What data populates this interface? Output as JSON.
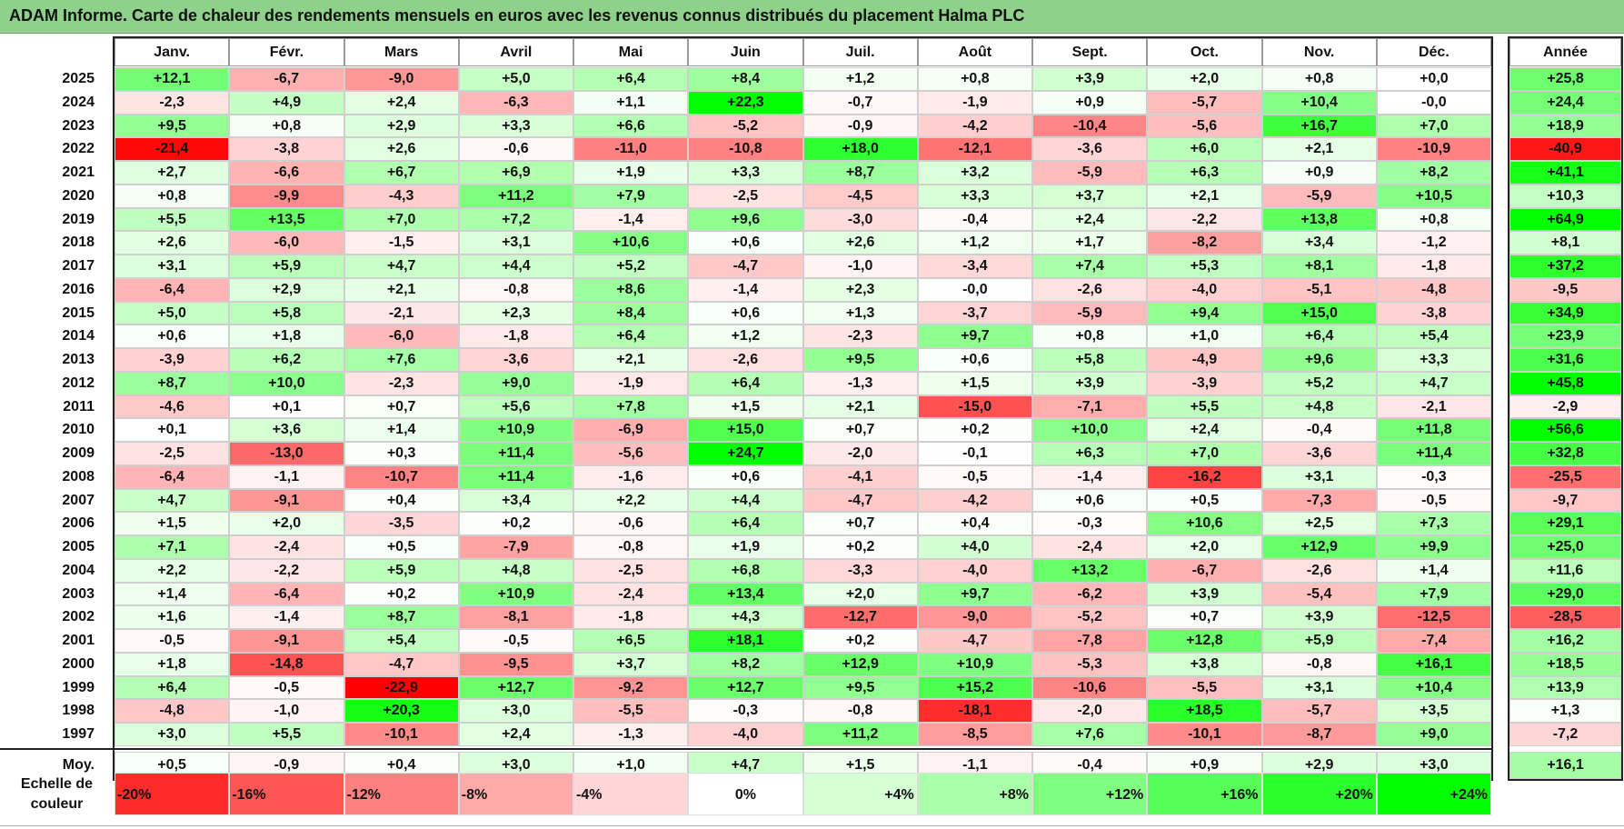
{
  "title": "ADAM Informe. Carte de chaleur des rendements mensuels en euros avec les revenus connus distribués du placement Halma PLC",
  "chart_data": {
    "type": "heatmap",
    "title": "ADAM Informe. Carte de chaleur des rendements mensuels en euros avec les revenus connus distribués du placement Halma PLC",
    "months": [
      "Janv.",
      "Févr.",
      "Mars",
      "Avril",
      "Mai",
      "Juin",
      "Juil.",
      "Août",
      "Sept.",
      "Oct.",
      "Nov.",
      "Déc."
    ],
    "year_header": "Année",
    "rows": [
      {
        "year": "2025",
        "values": [
          "+12,1",
          "-6,7",
          "-9,0",
          "+5,0",
          "+6,4",
          "+8,4",
          "+1,2",
          "+0,8",
          "+3,9",
          "+2,0",
          "+0,8",
          "+0,0"
        ],
        "annual": "+25,8"
      },
      {
        "year": "2024",
        "values": [
          "-2,3",
          "+4,9",
          "+2,4",
          "-6,3",
          "+1,1",
          "+22,3",
          "-0,7",
          "-1,9",
          "+0,9",
          "-5,7",
          "+10,4",
          "-0,0"
        ],
        "annual": "+24,4"
      },
      {
        "year": "2023",
        "values": [
          "+9,5",
          "+0,8",
          "+2,9",
          "+3,3",
          "+6,6",
          "-5,2",
          "-0,9",
          "-4,2",
          "-10,4",
          "-5,6",
          "+16,7",
          "+7,0"
        ],
        "annual": "+18,9"
      },
      {
        "year": "2022",
        "values": [
          "-21,4",
          "-3,8",
          "+2,6",
          "-0,6",
          "-11,0",
          "-10,8",
          "+18,0",
          "-12,1",
          "-3,6",
          "+6,0",
          "+2,1",
          "-10,9"
        ],
        "annual": "-40,9"
      },
      {
        "year": "2021",
        "values": [
          "+2,7",
          "-6,6",
          "+6,7",
          "+6,9",
          "+1,9",
          "+3,3",
          "+8,7",
          "+3,2",
          "-5,9",
          "+6,3",
          "+0,9",
          "+8,2"
        ],
        "annual": "+41,1"
      },
      {
        "year": "2020",
        "values": [
          "+0,8",
          "-9,9",
          "-4,3",
          "+11,2",
          "+7,9",
          "-2,5",
          "-4,5",
          "+3,3",
          "+3,7",
          "+2,1",
          "-5,9",
          "+10,5"
        ],
        "annual": "+10,3"
      },
      {
        "year": "2019",
        "values": [
          "+5,5",
          "+13,5",
          "+7,0",
          "+7,2",
          "-1,4",
          "+9,6",
          "-3,0",
          "-0,4",
          "+2,4",
          "-2,2",
          "+13,8",
          "+0,8"
        ],
        "annual": "+64,9"
      },
      {
        "year": "2018",
        "values": [
          "+2,6",
          "-6,0",
          "-1,5",
          "+3,1",
          "+10,6",
          "+0,6",
          "+2,6",
          "+1,2",
          "+1,7",
          "-8,2",
          "+3,4",
          "-1,2"
        ],
        "annual": "+8,1"
      },
      {
        "year": "2017",
        "values": [
          "+3,1",
          "+5,9",
          "+4,7",
          "+4,4",
          "+5,2",
          "-4,7",
          "-1,0",
          "-3,4",
          "+7,4",
          "+5,3",
          "+8,1",
          "-1,8"
        ],
        "annual": "+37,2"
      },
      {
        "year": "2016",
        "values": [
          "-6,4",
          "+2,9",
          "+2,1",
          "-0,8",
          "+8,6",
          "-1,4",
          "+2,3",
          "-0,0",
          "-2,6",
          "-4,0",
          "-5,1",
          "-4,8"
        ],
        "annual": "-9,5"
      },
      {
        "year": "2015",
        "values": [
          "+5,0",
          "+5,8",
          "-2,1",
          "+2,3",
          "+8,4",
          "+0,6",
          "+1,3",
          "-3,7",
          "-5,9",
          "+9,4",
          "+15,0",
          "-3,8"
        ],
        "annual": "+34,9"
      },
      {
        "year": "2014",
        "values": [
          "+0,6",
          "+1,8",
          "-6,0",
          "-1,8",
          "+6,4",
          "+1,2",
          "-2,3",
          "+9,7",
          "+0,8",
          "+1,0",
          "+6,4",
          "+5,4"
        ],
        "annual": "+23,9"
      },
      {
        "year": "2013",
        "values": [
          "-3,9",
          "+6,2",
          "+7,6",
          "-3,6",
          "+2,1",
          "-2,6",
          "+9,5",
          "+0,6",
          "+5,8",
          "-4,9",
          "+9,6",
          "+3,3"
        ],
        "annual": "+31,6"
      },
      {
        "year": "2012",
        "values": [
          "+8,7",
          "+10,0",
          "-2,3",
          "+9,0",
          "-1,9",
          "+6,4",
          "-1,3",
          "+1,5",
          "+3,9",
          "-3,9",
          "+5,2",
          "+4,7"
        ],
        "annual": "+45,8"
      },
      {
        "year": "2011",
        "values": [
          "-4,6",
          "+0,1",
          "+0,7",
          "+5,6",
          "+7,8",
          "+1,5",
          "+2,1",
          "-15,0",
          "-7,1",
          "+5,5",
          "+4,8",
          "-2,1"
        ],
        "annual": "-2,9"
      },
      {
        "year": "2010",
        "values": [
          "+0,1",
          "+3,6",
          "+1,4",
          "+10,9",
          "-6,9",
          "+15,0",
          "+0,7",
          "+0,2",
          "+10,0",
          "+2,4",
          "-0,4",
          "+11,8"
        ],
        "annual": "+56,6"
      },
      {
        "year": "2009",
        "values": [
          "-2,5",
          "-13,0",
          "+0,3",
          "+11,4",
          "-5,6",
          "+24,7",
          "-2,0",
          "-0,1",
          "+6,3",
          "+7,0",
          "-3,6",
          "+11,4"
        ],
        "annual": "+32,8"
      },
      {
        "year": "2008",
        "values": [
          "-6,4",
          "-1,1",
          "-10,7",
          "+11,4",
          "-1,6",
          "+0,6",
          "-4,1",
          "-0,5",
          "-1,4",
          "-16,2",
          "+3,1",
          "-0,3"
        ],
        "annual": "-25,5"
      },
      {
        "year": "2007",
        "values": [
          "+4,7",
          "-9,1",
          "+0,4",
          "+3,4",
          "+2,2",
          "+4,4",
          "-4,7",
          "-4,2",
          "+0,6",
          "+0,5",
          "-7,3",
          "-0,5"
        ],
        "annual": "-9,7"
      },
      {
        "year": "2006",
        "values": [
          "+1,5",
          "+2,0",
          "-3,5",
          "+0,2",
          "-0,6",
          "+6,4",
          "+0,7",
          "+0,4",
          "-0,3",
          "+10,6",
          "+2,5",
          "+7,3"
        ],
        "annual": "+29,1"
      },
      {
        "year": "2005",
        "values": [
          "+7,1",
          "-2,4",
          "+0,5",
          "-7,9",
          "-0,8",
          "+1,9",
          "+0,2",
          "+4,0",
          "-2,4",
          "+2,0",
          "+12,9",
          "+9,9"
        ],
        "annual": "+25,0"
      },
      {
        "year": "2004",
        "values": [
          "+2,2",
          "-2,2",
          "+5,9",
          "+4,8",
          "-2,5",
          "+6,8",
          "-3,3",
          "-4,0",
          "+13,2",
          "-6,7",
          "-2,6",
          "+1,4"
        ],
        "annual": "+11,6"
      },
      {
        "year": "2003",
        "values": [
          "+1,4",
          "-6,4",
          "+0,2",
          "+10,9",
          "-2,4",
          "+13,4",
          "+2,0",
          "+9,7",
          "-6,2",
          "+3,9",
          "-5,4",
          "+7,9"
        ],
        "annual": "+29,0"
      },
      {
        "year": "2002",
        "values": [
          "+1,6",
          "-1,4",
          "+8,7",
          "-8,1",
          "-1,8",
          "+4,3",
          "-12,7",
          "-9,0",
          "-5,2",
          "+0,7",
          "+3,9",
          "-12,5"
        ],
        "annual": "-28,5"
      },
      {
        "year": "2001",
        "values": [
          "-0,5",
          "-9,1",
          "+5,4",
          "-0,5",
          "+6,5",
          "+18,1",
          "+0,2",
          "-4,7",
          "-7,8",
          "+12,8",
          "+5,9",
          "-7,4"
        ],
        "annual": "+16,2"
      },
      {
        "year": "2000",
        "values": [
          "+1,8",
          "-14,8",
          "-4,7",
          "-9,5",
          "+3,7",
          "+8,2",
          "+12,9",
          "+10,9",
          "-5,3",
          "+3,8",
          "-0,8",
          "+16,1"
        ],
        "annual": "+18,5"
      },
      {
        "year": "1999",
        "values": [
          "+6,4",
          "-0,5",
          "-22,9",
          "+12,7",
          "-9,2",
          "+12,7",
          "+9,5",
          "+15,2",
          "-10,6",
          "-5,5",
          "+3,1",
          "+10,4"
        ],
        "annual": "+13,9"
      },
      {
        "year": "1998",
        "values": [
          "-4,8",
          "-1,0",
          "+20,3",
          "+3,0",
          "-5,5",
          "-0,3",
          "-0,8",
          "-18,1",
          "-2,0",
          "+18,5",
          "-5,7",
          "+3,5"
        ],
        "annual": "+1,3"
      },
      {
        "year": "1997",
        "values": [
          "+3,0",
          "+5,5",
          "-10,1",
          "+2,4",
          "-1,3",
          "-4,0",
          "+11,2",
          "-8,5",
          "+7,6",
          "-10,1",
          "-8,7",
          "+9,0"
        ],
        "annual": "-7,2"
      }
    ],
    "average": {
      "label": "Moy.",
      "values": [
        "+0,5",
        "-0,9",
        "+0,4",
        "+3,0",
        "+1,0",
        "+4,7",
        "+1,5",
        "-1,1",
        "-0,4",
        "+0,9",
        "+2,9",
        "+3,0"
      ],
      "annual": "+16,1"
    },
    "scale": {
      "label_line1": "Echelle de",
      "label_line2": "couleur",
      "items": [
        {
          "label": "-20%",
          "v": -20
        },
        {
          "label": "-16%",
          "v": -16
        },
        {
          "label": "-12%",
          "v": -12
        },
        {
          "label": "-8%",
          "v": -8
        },
        {
          "label": "-4%",
          "v": -4
        },
        {
          "label": "0%",
          "v": 0
        },
        {
          "label": "+4%",
          "v": 4
        },
        {
          "label": "+8%",
          "v": 8
        },
        {
          "label": "+12%",
          "v": 12
        },
        {
          "label": "+16%",
          "v": 16
        },
        {
          "label": "+20%",
          "v": 20
        },
        {
          "label": "+24%",
          "v": 24
        }
      ]
    },
    "colors": {
      "negative": "#ff0000",
      "neutral": "#ffffff",
      "positive": "#00ff00",
      "title_bar": "#8fd18a"
    }
  }
}
